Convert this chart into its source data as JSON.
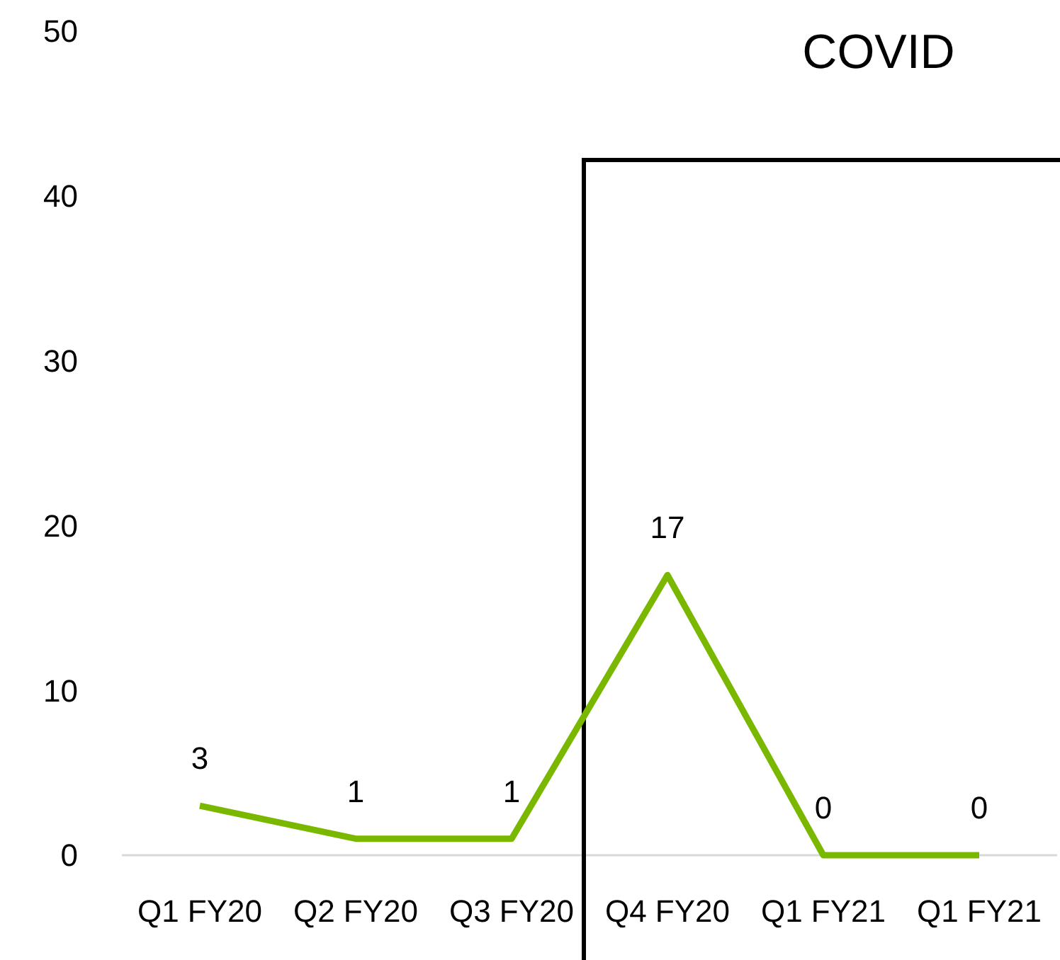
{
  "chart_data": {
    "type": "line",
    "categories": [
      "Q1 FY20",
      "Q2 FY20",
      "Q3 FY20",
      "Q4 FY20",
      "Q1 FY21",
      "Q1 FY21"
    ],
    "series": [
      {
        "color": "#7ab800",
        "values": [
          3,
          1,
          1,
          17,
          0,
          0
        ]
      }
    ],
    "ylim": [
      0,
      50
    ],
    "yticks": [
      0,
      10,
      20,
      30,
      40,
      50
    ],
    "data_labels": true,
    "grid": false,
    "marker": "none",
    "line_style": "solid",
    "ref_lines": [
      {
        "axis": "x",
        "value": "Q4 FY20",
        "label": "COVID",
        "color": "#000000",
        "line_style": "solid"
      }
    ]
  }
}
